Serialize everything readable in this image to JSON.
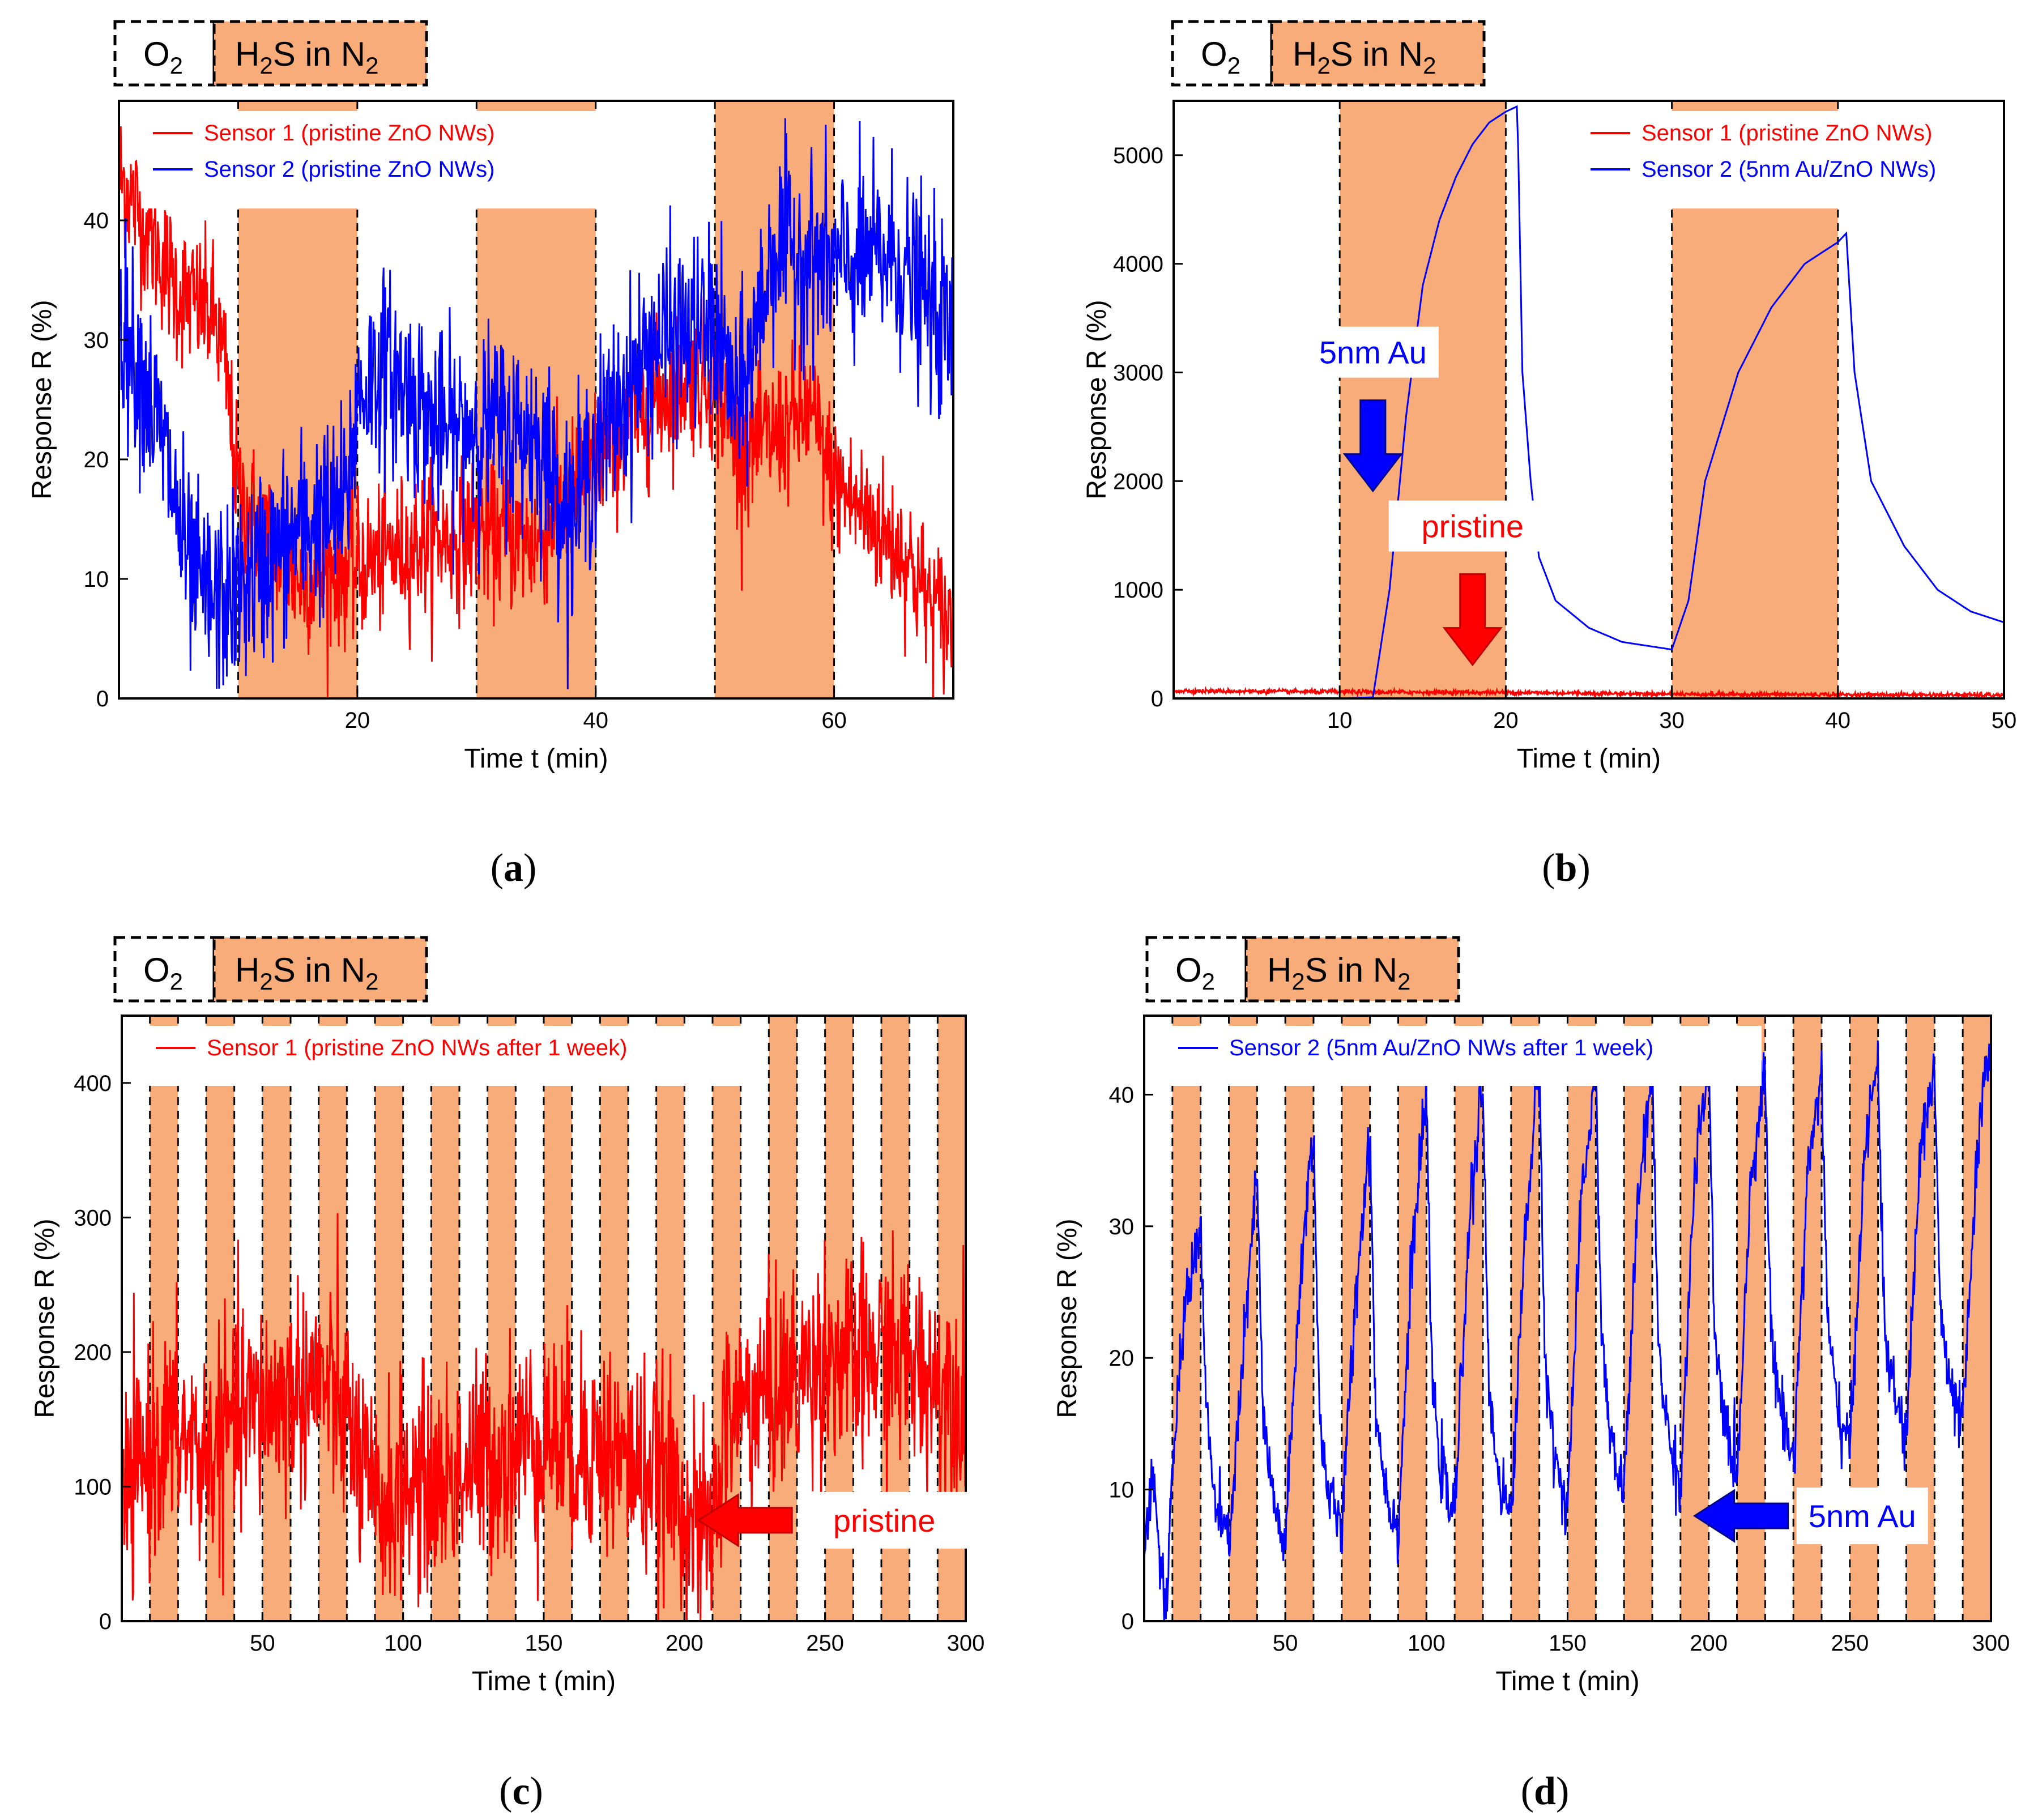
{
  "figure": {
    "colors": {
      "shade": "#f8ac7a",
      "red": "#ff0000",
      "blue": "#0000ff",
      "dark_red": "#c00000",
      "dark_blue": "#00008b"
    }
  },
  "chart_data": [
    {
      "panel": "a",
      "type": "line",
      "caption": "(a)",
      "key": {
        "o2_label": "O2",
        "h2s_label": "H2S in N2",
        "o2": {
          "base": "O",
          "sub": "2"
        },
        "h2s": {
          "pre": "H",
          "sub1": "2",
          "mid": "S in N",
          "sub2": "2"
        }
      },
      "xlabel": "Time t (min)",
      "ylabel": "Response R (%)",
      "xlim": [
        0,
        70
      ],
      "ylim": [
        0,
        50
      ],
      "xticks": [
        20,
        40,
        60
      ],
      "yticks": [
        0,
        10,
        20,
        30,
        40
      ],
      "exposure_intervals": [
        [
          10,
          20
        ],
        [
          30,
          40
        ],
        [
          50,
          60
        ]
      ],
      "legend_position": "top-left",
      "annotations": [],
      "series": [
        {
          "name": "Sensor 1 (pristine ZnO NWs)",
          "color": "#ff0000",
          "noise": 3,
          "x": [
            0,
            2,
            5,
            8,
            9,
            10,
            15,
            20,
            25,
            30,
            35,
            40,
            45,
            48,
            50,
            52,
            55,
            58,
            60,
            63,
            66,
            68,
            70
          ],
          "y": [
            44,
            40,
            34,
            32,
            27,
            17,
            10,
            11,
            13,
            14,
            13,
            20,
            25,
            27,
            26,
            21,
            22,
            24,
            18,
            15,
            12,
            8,
            6
          ]
        },
        {
          "name": "Sensor 2 (pristine ZnO NWs)",
          "color": "#0000ff",
          "noise": 4,
          "x": [
            0,
            2,
            4,
            5,
            6,
            8,
            10,
            15,
            19,
            20,
            22,
            25,
            27,
            30,
            35,
            38,
            40,
            45,
            50,
            52,
            55,
            58,
            60,
            65,
            70
          ],
          "y": [
            32,
            27,
            20,
            15,
            10,
            8,
            9,
            14,
            16,
            25,
            28,
            25,
            22,
            23,
            22,
            15,
            21,
            30,
            31,
            24,
            38,
            37,
            36,
            37,
            30
          ]
        }
      ]
    },
    {
      "panel": "b",
      "type": "line",
      "caption": "(b)",
      "key": {
        "o2_label": "O2",
        "h2s_label": "H2S in N2",
        "o2": {
          "base": "O",
          "sub": "2"
        },
        "h2s": {
          "pre": "H",
          "sub1": "2",
          "mid": "S in N",
          "sub2": "2"
        }
      },
      "xlabel": "Time t (min)",
      "ylabel": "Response R (%)",
      "xlim": [
        0,
        50
      ],
      "ylim": [
        0,
        5500
      ],
      "xticks": [
        10,
        20,
        30,
        40,
        50
      ],
      "yticks": [
        0,
        1000,
        2000,
        3000,
        4000,
        5000
      ],
      "exposure_intervals": [
        [
          10,
          20
        ],
        [
          30,
          40
        ]
      ],
      "legend_position": "top-right",
      "annotations": [
        {
          "text": "5nm Au",
          "color": "#0000ff",
          "arrow": "down",
          "x": 12,
          "y": 2900
        },
        {
          "text": "pristine",
          "color": "#ff0000",
          "arrow": "down",
          "x": 18,
          "y": 1300
        }
      ],
      "series": [
        {
          "name": "Sensor 1 (pristine ZnO NWs)",
          "color": "#ff0000",
          "noise": 10,
          "x": [
            0,
            10,
            20,
            30,
            40,
            50
          ],
          "y": [
            70,
            60,
            55,
            40,
            35,
            30
          ]
        },
        {
          "name": "Sensor 2 (5nm Au/ZnO NWs)",
          "color": "#0000ff",
          "noise": 0,
          "x": [
            0,
            10,
            12,
            13,
            14,
            15,
            16,
            17,
            18,
            19,
            20,
            20.7,
            21,
            21.5,
            22,
            23,
            25,
            27,
            30,
            31,
            32,
            34,
            36,
            38,
            40,
            40.5,
            41,
            42,
            44,
            46,
            48,
            50
          ],
          "y": [
            0,
            0,
            10,
            1000,
            2600,
            3800,
            4400,
            4800,
            5100,
            5300,
            5400,
            5450,
            3000,
            2000,
            1300,
            900,
            650,
            520,
            450,
            900,
            2000,
            3000,
            3600,
            4000,
            4200,
            4280,
            3000,
            2000,
            1400,
            1000,
            800,
            700
          ]
        }
      ]
    },
    {
      "panel": "c",
      "type": "line",
      "caption": "(c)",
      "key": {
        "o2_label": "O2",
        "h2s_label": "H2S in N2",
        "o2": {
          "base": "O",
          "sub": "2"
        },
        "h2s": {
          "pre": "H",
          "sub1": "2",
          "mid": "S in N",
          "sub2": "2"
        }
      },
      "xlabel": "Time t (min)",
      "ylabel": "Response R (%)",
      "xlim": [
        0,
        300
      ],
      "ylim": [
        0,
        450
      ],
      "xticks": [
        50,
        100,
        150,
        200,
        250,
        300
      ],
      "yticks": [
        0,
        100,
        200,
        300,
        400
      ],
      "exposure_intervals": [
        [
          10,
          20
        ],
        [
          30,
          40
        ],
        [
          50,
          60
        ],
        [
          70,
          80
        ],
        [
          90,
          100
        ],
        [
          110,
          120
        ],
        [
          130,
          140
        ],
        [
          150,
          160
        ],
        [
          170,
          180
        ],
        [
          190,
          200
        ],
        [
          210,
          220
        ],
        [
          230,
          240
        ],
        [
          250,
          260
        ],
        [
          270,
          280
        ],
        [
          290,
          300
        ]
      ],
      "legend_position": "top-left",
      "annotations": [
        {
          "text": "pristine",
          "color": "#ff0000",
          "arrow": "left",
          "x": 205,
          "y": 75
        }
      ],
      "series": [
        {
          "name": "Sensor 1 (pristine ZnO NWs after 1 week)",
          "color": "#ff0000",
          "noise": 40,
          "x": [
            0,
            10,
            20,
            30,
            40,
            50,
            60,
            70,
            80,
            90,
            100,
            110,
            120,
            130,
            140,
            150,
            160,
            170,
            180,
            190,
            200,
            205,
            210,
            215,
            220,
            230,
            240,
            250,
            260,
            270,
            280,
            290,
            300
          ],
          "y": [
            80,
            130,
            140,
            120,
            150,
            160,
            170,
            180,
            150,
            80,
            100,
            100,
            110,
            120,
            130,
            140,
            130,
            130,
            120,
            110,
            90,
            60,
            70,
            150,
            160,
            170,
            180,
            200,
            190,
            200,
            190,
            180,
            170
          ]
        }
      ]
    },
    {
      "panel": "d",
      "type": "line",
      "caption": "(d)",
      "key": {
        "o2_label": "O2",
        "h2s_label": "H2S in N2",
        "o2": {
          "base": "O",
          "sub": "2"
        },
        "h2s": {
          "pre": "H",
          "sub1": "2",
          "mid": "S in N",
          "sub2": "2"
        }
      },
      "xlabel": "Time t (min)",
      "ylabel": "Response R (%)",
      "xlim": [
        0,
        300
      ],
      "ylim": [
        0,
        46
      ],
      "xticks": [
        50,
        100,
        150,
        200,
        250,
        300
      ],
      "yticks": [
        0,
        10,
        20,
        30,
        40
      ],
      "exposure_intervals": [
        [
          10,
          20
        ],
        [
          30,
          40
        ],
        [
          50,
          60
        ],
        [
          70,
          80
        ],
        [
          90,
          100
        ],
        [
          110,
          120
        ],
        [
          130,
          140
        ],
        [
          150,
          160
        ],
        [
          170,
          180
        ],
        [
          190,
          200
        ],
        [
          210,
          220
        ],
        [
          230,
          240
        ],
        [
          250,
          260
        ],
        [
          270,
          280
        ],
        [
          290,
          300
        ]
      ],
      "legend_position": "top-left",
      "annotations": [
        {
          "text": "5nm Au",
          "color": "#0000ff",
          "arrow": "left",
          "x": 195,
          "y": 8
        }
      ],
      "series": [
        {
          "name": "Sensor 2 (5nm Au/ZnO NWs after 1 week)",
          "color": "#0000ff",
          "noise": 1.2,
          "x": [
            0,
            3,
            5,
            8,
            10,
            15,
            20,
            22,
            25,
            28,
            30,
            35,
            40,
            42,
            45,
            48,
            50,
            55,
            60,
            62,
            65,
            68,
            70,
            75,
            80,
            82,
            85,
            88,
            90,
            95,
            100,
            102,
            105,
            108,
            110,
            115,
            120,
            122,
            125,
            128,
            130,
            135,
            140,
            142,
            145,
            148,
            150,
            155,
            160,
            162,
            165,
            168,
            170,
            175,
            180,
            182,
            185,
            188,
            190,
            195,
            200,
            202,
            205,
            208,
            210,
            215,
            220,
            222,
            225,
            228,
            230,
            235,
            240,
            242,
            245,
            248,
            250,
            255,
            260,
            262,
            265,
            268,
            270,
            275,
            280,
            282,
            285,
            288,
            290,
            295,
            300
          ],
          "y": [
            5,
            12,
            6,
            0,
            12,
            25,
            30,
            16,
            9,
            7,
            6,
            20,
            34,
            16,
            10,
            7,
            6,
            25,
            38,
            16,
            10,
            8,
            7,
            25,
            37,
            16,
            11,
            8,
            7,
            28,
            40,
            18,
            12,
            9,
            8,
            30,
            41,
            18,
            12,
            9,
            8,
            30,
            42,
            20,
            13,
            10,
            9,
            32,
            42,
            22,
            14,
            11,
            10,
            32,
            42,
            22,
            15,
            12,
            10,
            34,
            42,
            22,
            16,
            13,
            11,
            34,
            42,
            22,
            17,
            14,
            12,
            34,
            42,
            23,
            17,
            14,
            13,
            35,
            43,
            23,
            18,
            15,
            14,
            36,
            42,
            24,
            18,
            16,
            15,
            35,
            45
          ]
        }
      ]
    }
  ]
}
